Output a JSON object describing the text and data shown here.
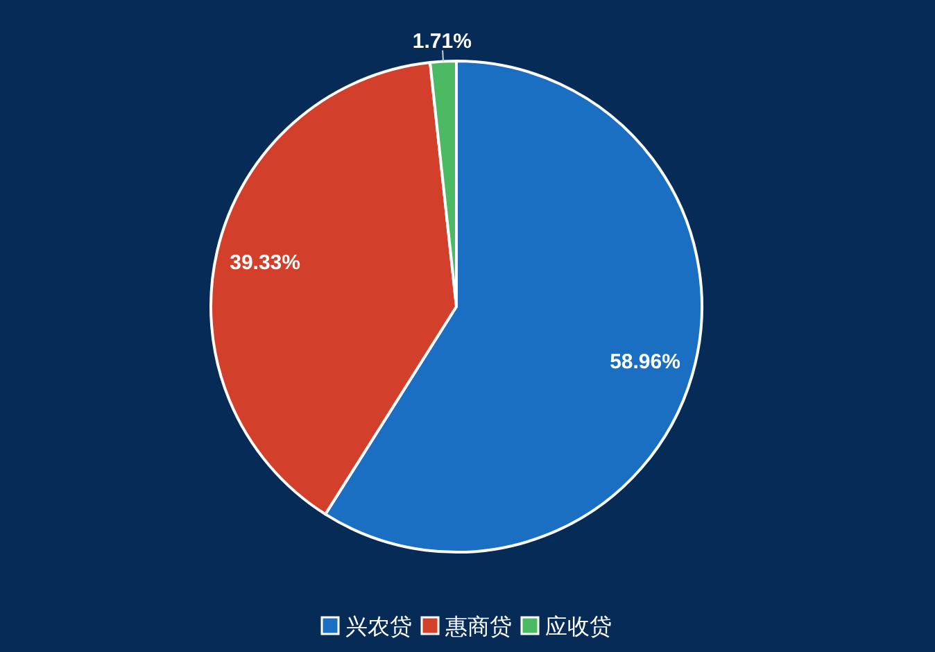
{
  "chart_data": {
    "type": "pie",
    "categories": [
      "兴农贷",
      "惠商贷",
      "应收贷"
    ],
    "values": [
      58.96,
      39.33,
      1.71
    ],
    "colors": [
      "#1a6fc2",
      "#d23f2a",
      "#4cba62"
    ],
    "value_labels": [
      "58.96%",
      "39.33%",
      "1.71%"
    ],
    "legend": "bottom"
  }
}
